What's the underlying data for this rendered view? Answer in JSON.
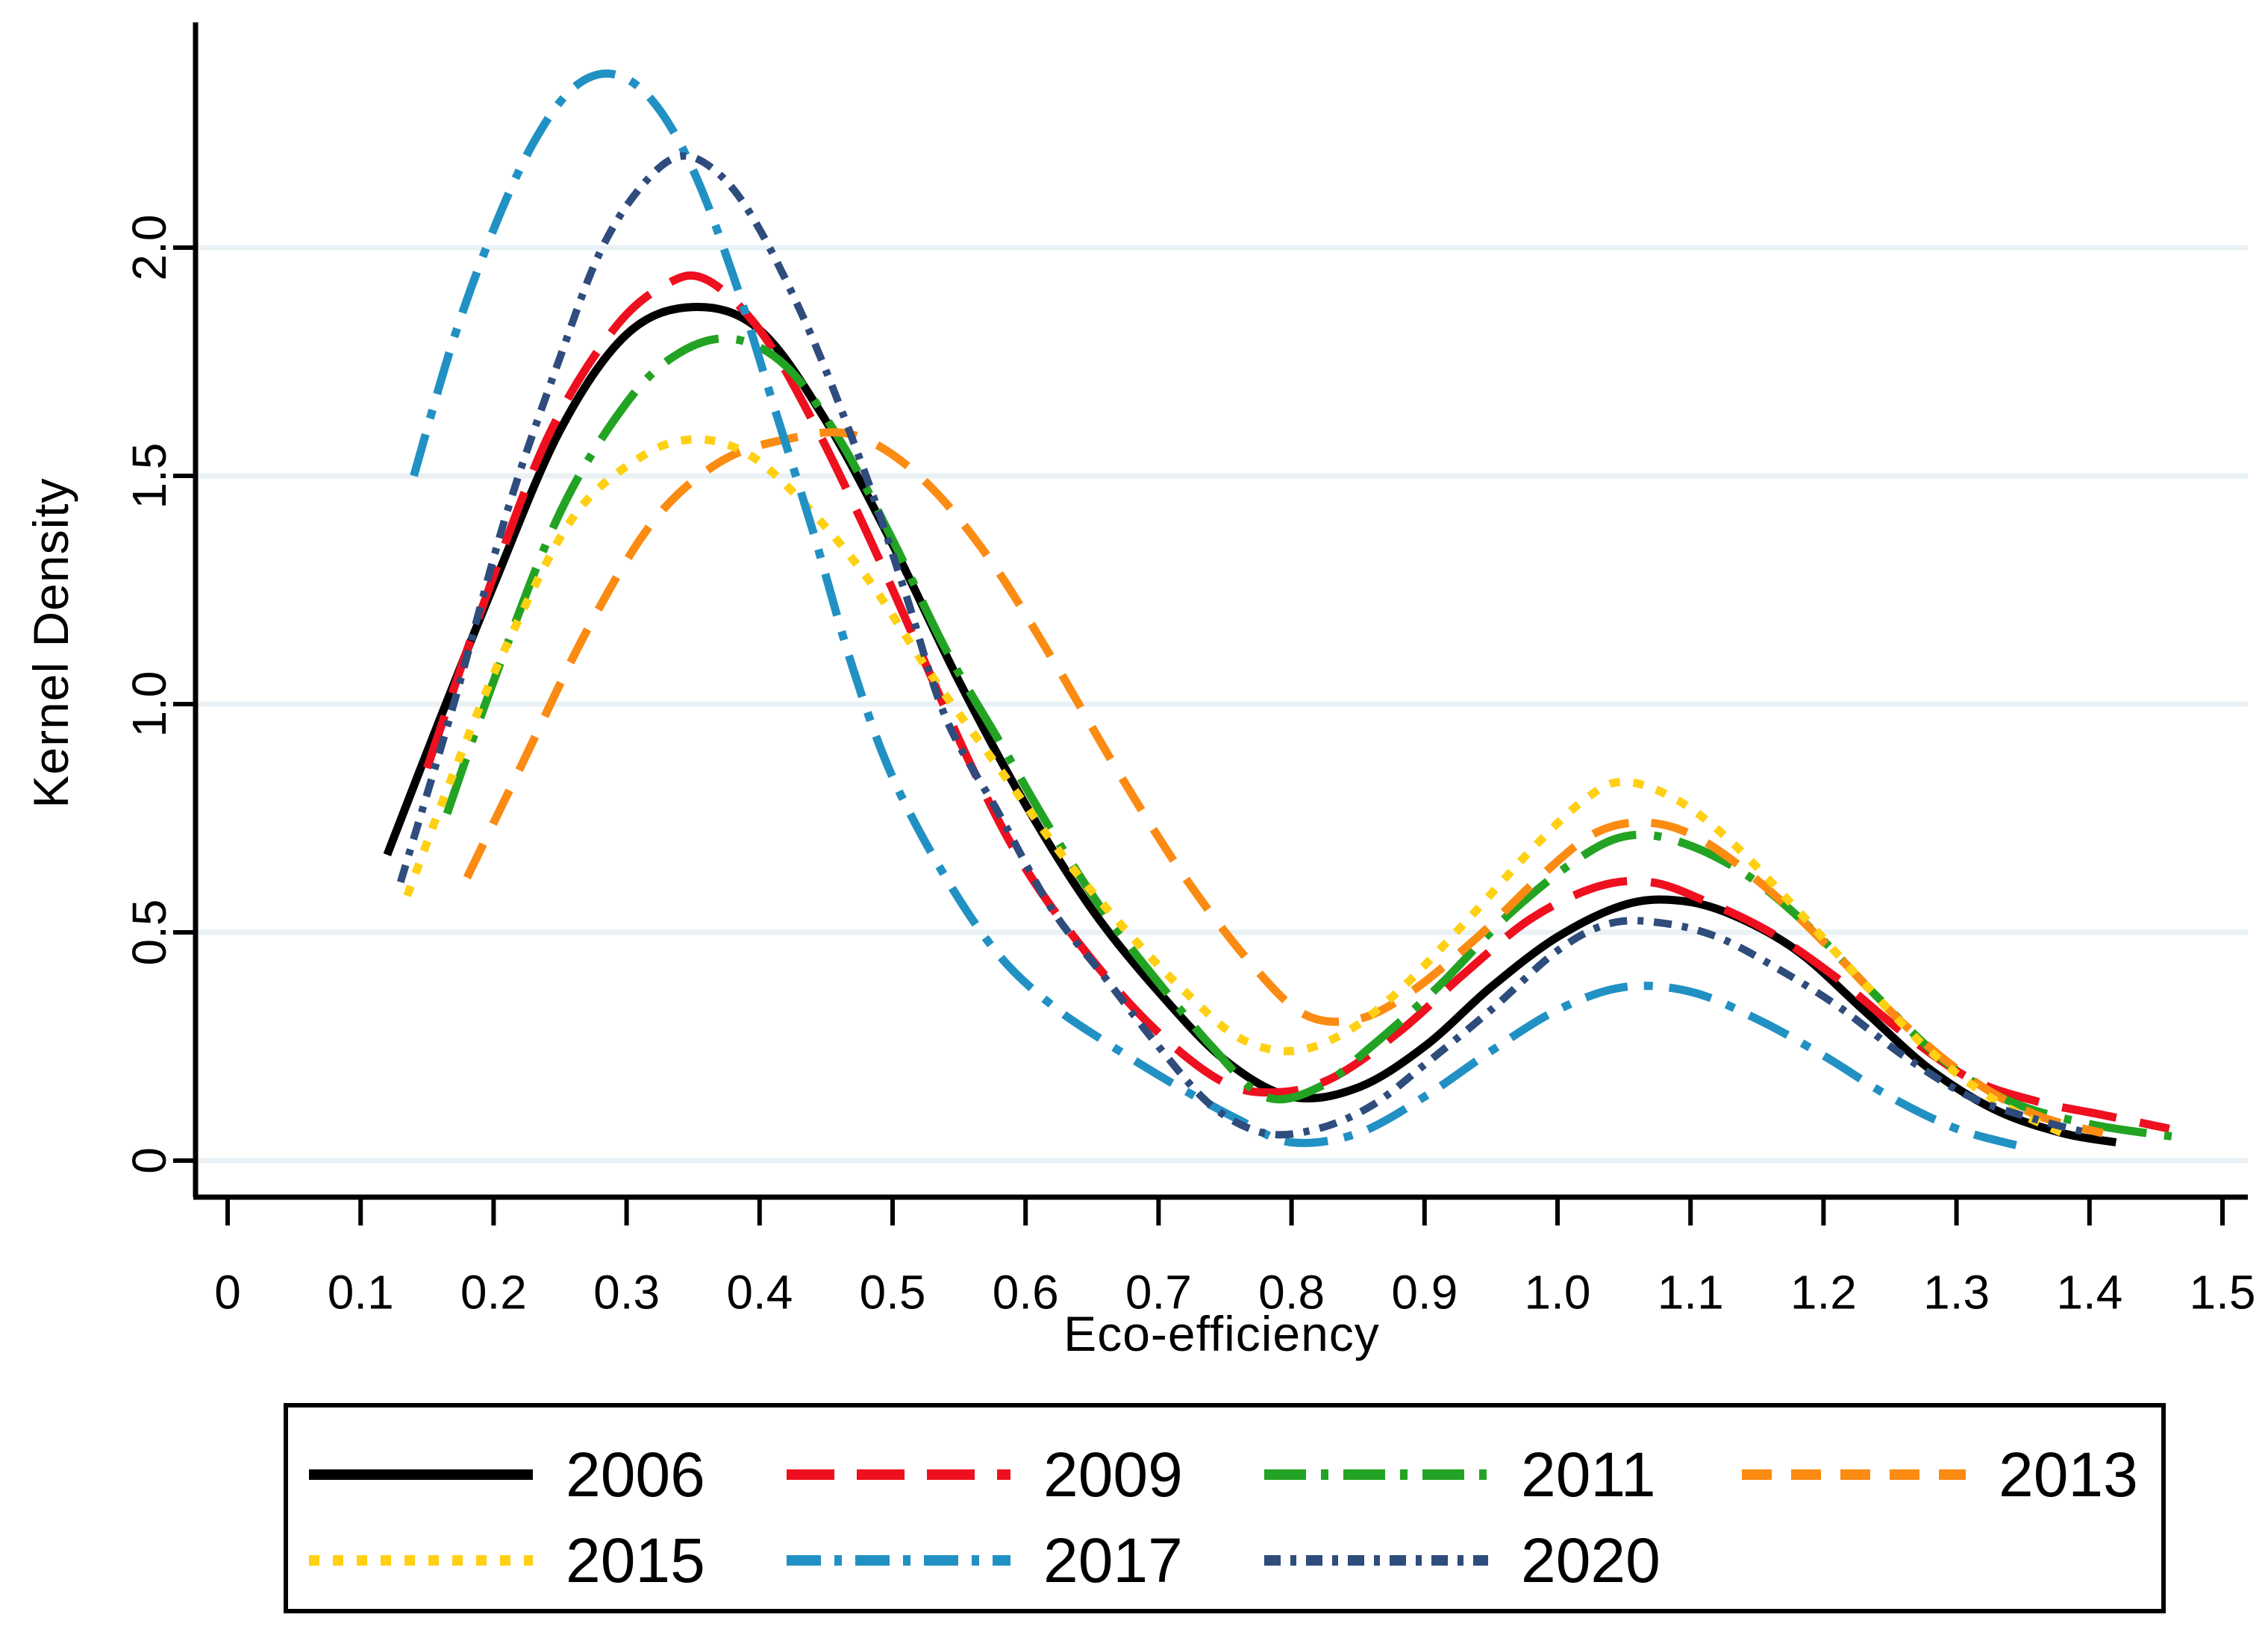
{
  "chart_data": {
    "type": "line",
    "title": "",
    "xlabel": "Eco-efficiency",
    "ylabel": "Kernel Density",
    "xlim": [
      0,
      1.5
    ],
    "ylim": [
      0,
      2.45
    ],
    "grid": "horizontal-light",
    "legend_position": "bottom-box",
    "x_ticks": [
      {
        "value": 0.0,
        "label": "0"
      },
      {
        "value": 0.1,
        "label": "0.1"
      },
      {
        "value": 0.2,
        "label": "0.2"
      },
      {
        "value": 0.3,
        "label": "0.3"
      },
      {
        "value": 0.4,
        "label": "0.4"
      },
      {
        "value": 0.5,
        "label": "0.5"
      },
      {
        "value": 0.6,
        "label": "0.6"
      },
      {
        "value": 0.7,
        "label": "0.7"
      },
      {
        "value": 0.8,
        "label": "0.8"
      },
      {
        "value": 0.9,
        "label": "0.9"
      },
      {
        "value": 1.0,
        "label": "1.0"
      },
      {
        "value": 1.1,
        "label": "1.1"
      },
      {
        "value": 1.2,
        "label": "1.2"
      },
      {
        "value": 1.3,
        "label": "1.3"
      },
      {
        "value": 1.4,
        "label": "1.4"
      },
      {
        "value": 1.5,
        "label": "1.5"
      }
    ],
    "y_ticks": [
      {
        "value": 0.0,
        "label": "0"
      },
      {
        "value": 0.5,
        "label": "0.5"
      },
      {
        "value": 1.0,
        "label": "1.0"
      },
      {
        "value": 1.5,
        "label": "1.5"
      },
      {
        "value": 2.0,
        "label": "2.0"
      }
    ],
    "series": [
      {
        "name": "2006",
        "color": "#000000",
        "dash": "",
        "legend_dash": "",
        "width": 11,
        "points": [
          [
            0.12,
            0.67
          ],
          [
            0.16,
            0.97
          ],
          [
            0.2,
            1.26
          ],
          [
            0.25,
            1.6
          ],
          [
            0.3,
            1.81
          ],
          [
            0.35,
            1.87
          ],
          [
            0.4,
            1.82
          ],
          [
            0.45,
            1.62
          ],
          [
            0.5,
            1.35
          ],
          [
            0.55,
            1.05
          ],
          [
            0.6,
            0.78
          ],
          [
            0.65,
            0.55
          ],
          [
            0.7,
            0.37
          ],
          [
            0.75,
            0.22
          ],
          [
            0.8,
            0.14
          ],
          [
            0.85,
            0.16
          ],
          [
            0.9,
            0.25
          ],
          [
            0.95,
            0.38
          ],
          [
            1.0,
            0.49
          ],
          [
            1.05,
            0.56
          ],
          [
            1.09,
            0.57
          ],
          [
            1.13,
            0.54
          ],
          [
            1.18,
            0.46
          ],
          [
            1.23,
            0.33
          ],
          [
            1.28,
            0.2
          ],
          [
            1.33,
            0.11
          ],
          [
            1.38,
            0.06
          ],
          [
            1.42,
            0.04
          ]
        ]
      },
      {
        "name": "2009",
        "color": "#ee0f1f",
        "dash": "74 32",
        "legend_dash": "64 30",
        "width": 11,
        "points": [
          [
            0.15,
            0.86
          ],
          [
            0.19,
            1.2
          ],
          [
            0.24,
            1.58
          ],
          [
            0.29,
            1.82
          ],
          [
            0.33,
            1.92
          ],
          [
            0.36,
            1.93
          ],
          [
            0.4,
            1.82
          ],
          [
            0.44,
            1.62
          ],
          [
            0.48,
            1.38
          ],
          [
            0.52,
            1.12
          ],
          [
            0.56,
            0.86
          ],
          [
            0.6,
            0.64
          ],
          [
            0.65,
            0.44
          ],
          [
            0.7,
            0.28
          ],
          [
            0.75,
            0.17
          ],
          [
            0.79,
            0.15
          ],
          [
            0.83,
            0.18
          ],
          [
            0.88,
            0.28
          ],
          [
            0.93,
            0.41
          ],
          [
            0.98,
            0.53
          ],
          [
            1.03,
            0.6
          ],
          [
            1.07,
            0.61
          ],
          [
            1.11,
            0.57
          ],
          [
            1.16,
            0.5
          ],
          [
            1.21,
            0.4
          ],
          [
            1.26,
            0.28
          ],
          [
            1.31,
            0.18
          ],
          [
            1.36,
            0.13
          ],
          [
            1.41,
            0.1
          ],
          [
            1.46,
            0.07
          ]
        ]
      },
      {
        "name": "2011",
        "color": "#23a323",
        "dash": "78 24 10 24",
        "legend_dash": "56 20 10 20",
        "width": 11,
        "points": [
          [
            0.165,
            0.76
          ],
          [
            0.2,
            1.05
          ],
          [
            0.25,
            1.42
          ],
          [
            0.3,
            1.66
          ],
          [
            0.34,
            1.77
          ],
          [
            0.38,
            1.8
          ],
          [
            0.42,
            1.74
          ],
          [
            0.46,
            1.58
          ],
          [
            0.5,
            1.36
          ],
          [
            0.54,
            1.12
          ],
          [
            0.58,
            0.92
          ],
          [
            0.62,
            0.72
          ],
          [
            0.66,
            0.54
          ],
          [
            0.7,
            0.39
          ],
          [
            0.74,
            0.25
          ],
          [
            0.78,
            0.14
          ],
          [
            0.82,
            0.16
          ],
          [
            0.86,
            0.25
          ],
          [
            0.91,
            0.38
          ],
          [
            0.96,
            0.53
          ],
          [
            1.01,
            0.65
          ],
          [
            1.05,
            0.71
          ],
          [
            1.09,
            0.7
          ],
          [
            1.14,
            0.63
          ],
          [
            1.19,
            0.51
          ],
          [
            1.24,
            0.36
          ],
          [
            1.29,
            0.22
          ],
          [
            1.34,
            0.13
          ],
          [
            1.4,
            0.08
          ],
          [
            1.47,
            0.05
          ]
        ]
      },
      {
        "name": "2013",
        "color": "#fb8b12",
        "dash": "50 30",
        "legend_dash": "40 26",
        "width": 11,
        "points": [
          [
            0.18,
            0.62
          ],
          [
            0.22,
            0.86
          ],
          [
            0.27,
            1.16
          ],
          [
            0.32,
            1.4
          ],
          [
            0.37,
            1.53
          ],
          [
            0.42,
            1.58
          ],
          [
            0.47,
            1.59
          ],
          [
            0.52,
            1.5
          ],
          [
            0.57,
            1.33
          ],
          [
            0.62,
            1.1
          ],
          [
            0.67,
            0.85
          ],
          [
            0.72,
            0.62
          ],
          [
            0.77,
            0.43
          ],
          [
            0.81,
            0.32
          ],
          [
            0.85,
            0.31
          ],
          [
            0.89,
            0.37
          ],
          [
            0.94,
            0.49
          ],
          [
            0.99,
            0.63
          ],
          [
            1.03,
            0.72
          ],
          [
            1.07,
            0.74
          ],
          [
            1.11,
            0.7
          ],
          [
            1.16,
            0.59
          ],
          [
            1.21,
            0.45
          ],
          [
            1.26,
            0.3
          ],
          [
            1.31,
            0.18
          ],
          [
            1.36,
            0.1
          ],
          [
            1.41,
            0.06
          ]
        ]
      },
      {
        "name": "2015",
        "color": "#ffd013",
        "dash": "14 18",
        "legend_dash": "14 18",
        "width": 11,
        "points": [
          [
            0.135,
            0.58
          ],
          [
            0.17,
            0.85
          ],
          [
            0.21,
            1.13
          ],
          [
            0.26,
            1.41
          ],
          [
            0.31,
            1.54
          ],
          [
            0.35,
            1.58
          ],
          [
            0.39,
            1.55
          ],
          [
            0.43,
            1.45
          ],
          [
            0.48,
            1.28
          ],
          [
            0.53,
            1.06
          ],
          [
            0.58,
            0.86
          ],
          [
            0.63,
            0.66
          ],
          [
            0.68,
            0.49
          ],
          [
            0.72,
            0.37
          ],
          [
            0.76,
            0.27
          ],
          [
            0.8,
            0.24
          ],
          [
            0.84,
            0.28
          ],
          [
            0.88,
            0.37
          ],
          [
            0.93,
            0.52
          ],
          [
            0.98,
            0.68
          ],
          [
            1.02,
            0.79
          ],
          [
            1.05,
            0.83
          ],
          [
            1.09,
            0.79
          ],
          [
            1.13,
            0.7
          ],
          [
            1.18,
            0.55
          ],
          [
            1.23,
            0.39
          ],
          [
            1.28,
            0.24
          ],
          [
            1.33,
            0.13
          ],
          [
            1.38,
            0.06
          ]
        ]
      },
      {
        "name": "2017",
        "color": "#2191c4",
        "dash": "58 22 12 22",
        "legend_dash": "46 18 10 18",
        "width": 11,
        "points": [
          [
            0.14,
            1.5
          ],
          [
            0.17,
            1.8
          ],
          [
            0.2,
            2.04
          ],
          [
            0.23,
            2.23
          ],
          [
            0.26,
            2.35
          ],
          [
            0.29,
            2.38
          ],
          [
            0.32,
            2.32
          ],
          [
            0.35,
            2.17
          ],
          [
            0.38,
            1.94
          ],
          [
            0.41,
            1.66
          ],
          [
            0.44,
            1.38
          ],
          [
            0.47,
            1.08
          ],
          [
            0.5,
            0.84
          ],
          [
            0.54,
            0.62
          ],
          [
            0.58,
            0.45
          ],
          [
            0.62,
            0.34
          ],
          [
            0.66,
            0.26
          ],
          [
            0.71,
            0.17
          ],
          [
            0.76,
            0.09
          ],
          [
            0.8,
            0.04
          ],
          [
            0.85,
            0.06
          ],
          [
            0.9,
            0.14
          ],
          [
            0.95,
            0.24
          ],
          [
            1.0,
            0.33
          ],
          [
            1.05,
            0.38
          ],
          [
            1.1,
            0.37
          ],
          [
            1.15,
            0.31
          ],
          [
            1.2,
            0.23
          ],
          [
            1.25,
            0.14
          ],
          [
            1.3,
            0.07
          ],
          [
            1.35,
            0.03
          ]
        ]
      },
      {
        "name": "2020",
        "color": "#2e4c7c",
        "dash": "24 14 8 14",
        "legend_dash": "22 13 8 13",
        "width": 10,
        "points": [
          [
            0.13,
            0.61
          ],
          [
            0.17,
            1.0
          ],
          [
            0.21,
            1.42
          ],
          [
            0.25,
            1.76
          ],
          [
            0.28,
            1.99
          ],
          [
            0.31,
            2.13
          ],
          [
            0.34,
            2.2
          ],
          [
            0.37,
            2.16
          ],
          [
            0.4,
            2.04
          ],
          [
            0.44,
            1.8
          ],
          [
            0.48,
            1.5
          ],
          [
            0.51,
            1.24
          ],
          [
            0.54,
            0.97
          ],
          [
            0.58,
            0.76
          ],
          [
            0.62,
            0.55
          ],
          [
            0.66,
            0.4
          ],
          [
            0.7,
            0.25
          ],
          [
            0.74,
            0.12
          ],
          [
            0.78,
            0.06
          ],
          [
            0.82,
            0.07
          ],
          [
            0.86,
            0.12
          ],
          [
            0.9,
            0.21
          ],
          [
            0.95,
            0.33
          ],
          [
            1.0,
            0.46
          ],
          [
            1.04,
            0.52
          ],
          [
            1.08,
            0.52
          ],
          [
            1.12,
            0.49
          ],
          [
            1.16,
            0.43
          ],
          [
            1.21,
            0.34
          ],
          [
            1.26,
            0.23
          ],
          [
            1.31,
            0.14
          ],
          [
            1.36,
            0.09
          ],
          [
            1.4,
            0.06
          ]
        ]
      }
    ]
  },
  "legend": {
    "rows": [
      [
        "2006",
        "2009",
        "2011",
        "2013"
      ],
      [
        "2015",
        "2017",
        "2020"
      ]
    ]
  },
  "style": {
    "grid_color": "#e9f1f5",
    "axis_color": "#000000",
    "background": "#ffffff"
  }
}
